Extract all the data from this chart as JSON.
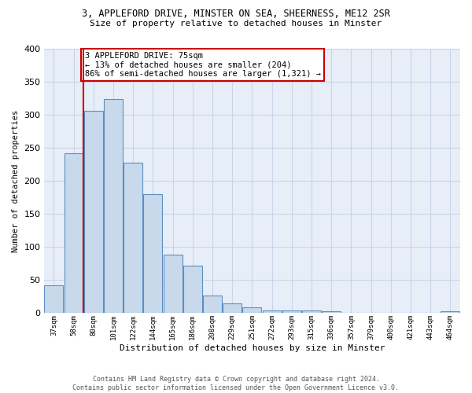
{
  "title_line1": "3, APPLEFORD DRIVE, MINSTER ON SEA, SHEERNESS, ME12 2SR",
  "title_line2": "Size of property relative to detached houses in Minster",
  "xlabel": "Distribution of detached houses by size in Minster",
  "ylabel": "Number of detached properties",
  "footer_line1": "Contains HM Land Registry data © Crown copyright and database right 2024.",
  "footer_line2": "Contains public sector information licensed under the Open Government Licence v3.0.",
  "categories": [
    "37sqm",
    "58sqm",
    "80sqm",
    "101sqm",
    "122sqm",
    "144sqm",
    "165sqm",
    "186sqm",
    "208sqm",
    "229sqm",
    "251sqm",
    "272sqm",
    "293sqm",
    "315sqm",
    "336sqm",
    "357sqm",
    "379sqm",
    "400sqm",
    "421sqm",
    "443sqm",
    "464sqm"
  ],
  "values": [
    42,
    242,
    305,
    323,
    227,
    180,
    88,
    72,
    26,
    15,
    9,
    4,
    4,
    4,
    3,
    0,
    0,
    0,
    0,
    0,
    3
  ],
  "bar_color": "#c9d9ec",
  "bar_edge_color": "#5a8fc2",
  "grid_color": "#c8d4e8",
  "bg_color": "#e8eef8",
  "annotation_text": "3 APPLEFORD DRIVE: 75sqm\n← 13% of detached houses are smaller (204)\n86% of semi-detached houses are larger (1,321) →",
  "annotation_box_color": "#ffffff",
  "annotation_box_edge": "#cc0000",
  "red_line_x": 1.5,
  "ylim": [
    0,
    400
  ],
  "yticks": [
    0,
    50,
    100,
    150,
    200,
    250,
    300,
    350,
    400
  ]
}
